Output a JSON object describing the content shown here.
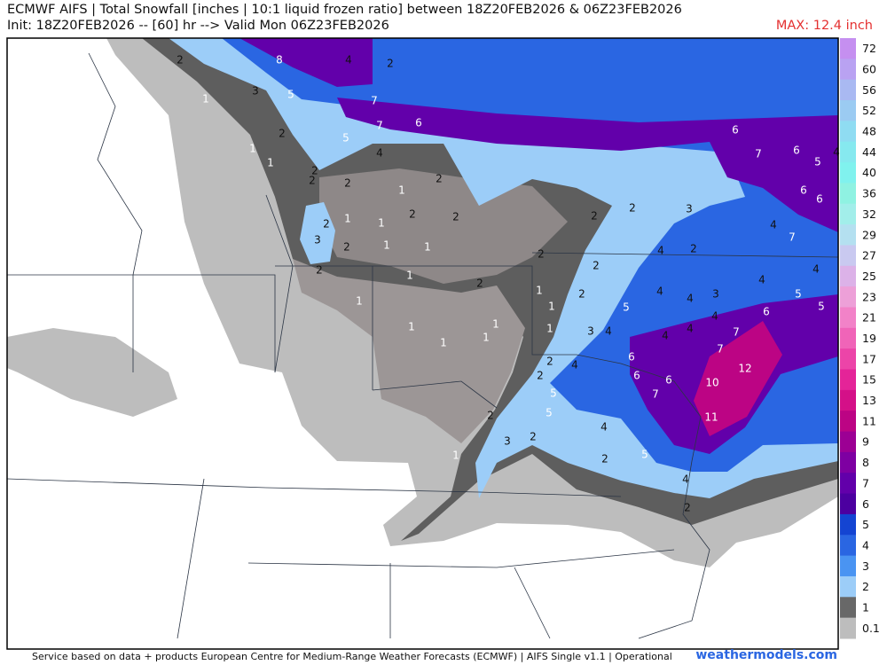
{
  "header": {
    "title": "ECMWF AIFS | Total Snowfall [inches | 10:1 liquid frozen ratio] between 18Z20FEB2026 & 06Z23FEB2026",
    "subtitle": "Init: 18Z20FEB2026 -- [60] hr --> Valid Mon 06Z23FEB2026",
    "max_label": "MAX: 12.4 inch"
  },
  "colorbar": [
    {
      "label": "72",
      "color": "#c58ff0"
    },
    {
      "label": "60",
      "color": "#b9a2f2"
    },
    {
      "label": "56",
      "color": "#a9b9f2"
    },
    {
      "label": "52",
      "color": "#9bcbf2"
    },
    {
      "label": "48",
      "color": "#8fdcf2"
    },
    {
      "label": "44",
      "color": "#86e9ef"
    },
    {
      "label": "40",
      "color": "#80f2ee"
    },
    {
      "label": "36",
      "color": "#8ff2e2"
    },
    {
      "label": "32",
      "color": "#a2eeea"
    },
    {
      "label": "29",
      "color": "#b4e0f0"
    },
    {
      "label": "27",
      "color": "#c9c9f0"
    },
    {
      "label": "25",
      "color": "#dcb2e8"
    },
    {
      "label": "23",
      "color": "#eda0d8"
    },
    {
      "label": "21",
      "color": "#f282c8"
    },
    {
      "label": "19",
      "color": "#f064b8"
    },
    {
      "label": "17",
      "color": "#ec44a8"
    },
    {
      "label": "15",
      "color": "#e42498"
    },
    {
      "label": "13",
      "color": "#d41088"
    },
    {
      "label": "11",
      "color": "#bc0484"
    },
    {
      "label": "9",
      "color": "#9c0094"
    },
    {
      "label": "8",
      "color": "#7e00a2"
    },
    {
      "label": "7",
      "color": "#6200aa"
    },
    {
      "label": "6",
      "color": "#4c00a0"
    },
    {
      "label": "5",
      "color": "#1444d2"
    },
    {
      "label": "4",
      "color": "#2a66e2"
    },
    {
      "label": "3",
      "color": "#4a94f2"
    },
    {
      "label": "2",
      "color": "#9ccdf8"
    },
    {
      "label": "1",
      "color": "#686868"
    },
    {
      "label": "0.1",
      "color": "#bdbdbd"
    }
  ],
  "contour_labels": [
    "8",
    "4",
    "2",
    "2",
    "1",
    "3",
    "5",
    "7",
    "7",
    "6",
    "5",
    "2",
    "1",
    "1",
    "4",
    "2",
    "2",
    "2",
    "1",
    "2",
    "2",
    "1",
    "1",
    "2",
    "2",
    "3",
    "2",
    "1",
    "1",
    "2",
    "1",
    "2",
    "1",
    "1",
    "1",
    "1",
    "1",
    "2",
    "2",
    "1",
    "1",
    "2",
    "1",
    "3",
    "4",
    "5",
    "2",
    "3",
    "2",
    "4",
    "2",
    "4",
    "4",
    "3",
    "4",
    "4",
    "4",
    "6",
    "7",
    "6",
    "5",
    "4",
    "6",
    "6",
    "4",
    "7",
    "4",
    "4",
    "5",
    "5",
    "6",
    "7",
    "7",
    "6",
    "2",
    "4",
    "6",
    "6",
    "7",
    "10",
    "12",
    "11",
    "2",
    "5",
    "5",
    "2",
    "4",
    "2",
    "3",
    "1",
    "2",
    "5",
    "4",
    "2"
  ],
  "footer": {
    "credit": "Service based on data + products European Centre for Medium-Range Weather Forecasts (ECMWF) | AIFS Single v1.1 | Operational",
    "site": "weathermodels.com"
  }
}
